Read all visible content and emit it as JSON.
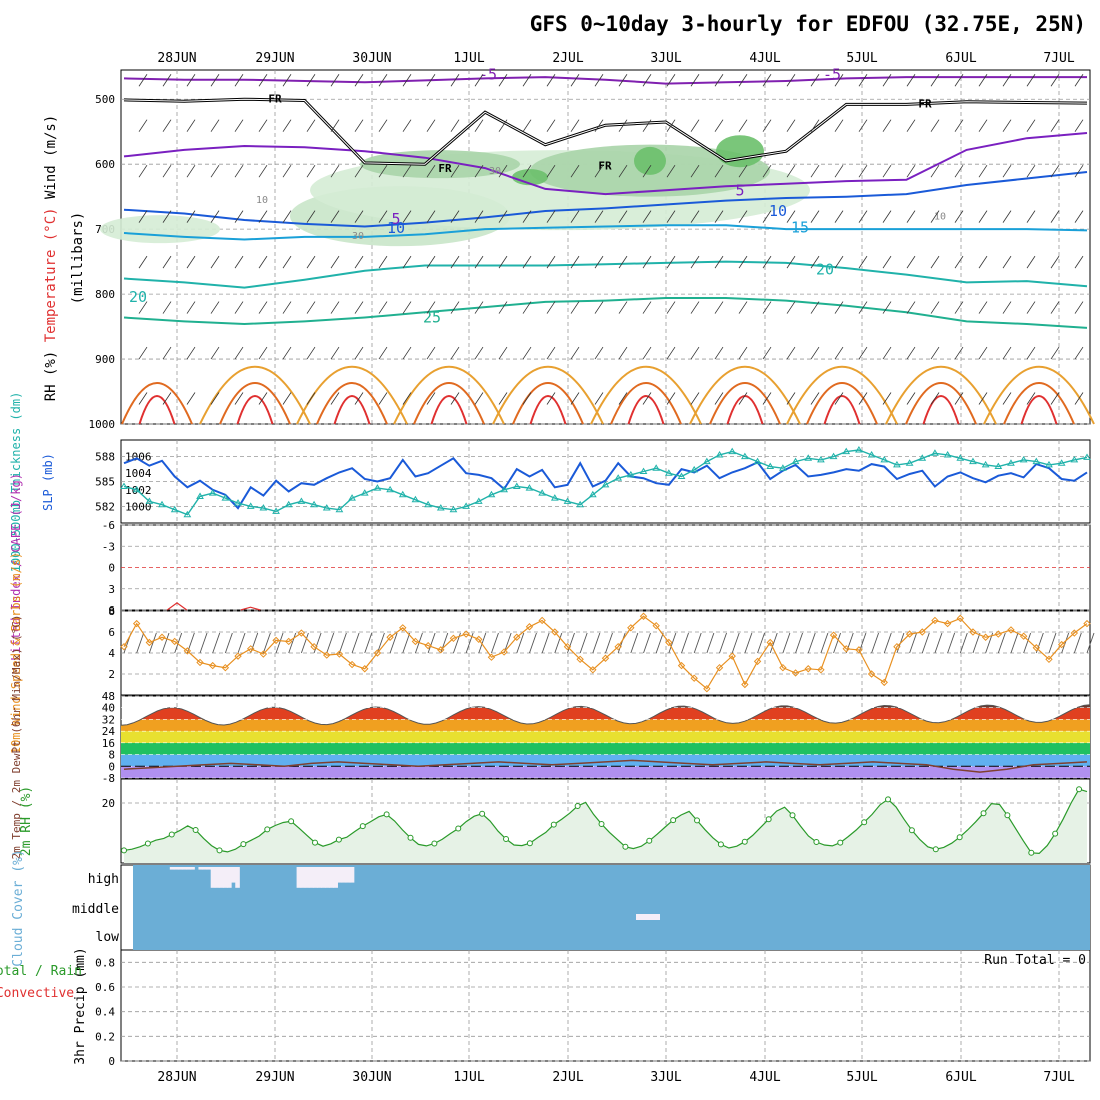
{
  "title": "GFS 0~10day 3-hourly for EDFOU (32.75E, 25N)",
  "dates": [
    "28JUN",
    "29JUN",
    "30JUN",
    "1JUL",
    "2JUL",
    "3JUL",
    "4JUL",
    "5JUL",
    "6JUL",
    "7JUL"
  ],
  "colors": {
    "rh": "#4caf50",
    "cyan": "#20b2aa",
    "blue": "#1030c8",
    "orange": "#e89020",
    "red": "#e03030",
    "cloud": "#6baed6",
    "purple": "#8020b0",
    "green": "#2a9a2a"
  },
  "chart_data": [
    {
      "type": "line",
      "panel": "upper-air",
      "ylabel": "(millibars)",
      "side_labels": [
        "Wind (m/s)",
        "Temperature (°C)",
        "RH (%)"
      ],
      "y_ticks": [
        "500",
        "600",
        "700",
        "800",
        "900",
        "1000"
      ],
      "isotherm_labels": [
        "-5",
        "-5",
        "5",
        "5",
        "10",
        "10",
        "15",
        "20",
        "20",
        "25"
      ],
      "freezing_labels": [
        "FR",
        "FR",
        "FR",
        "FR"
      ],
      "rh_labels": [
        "10",
        "30",
        "30",
        "10"
      ],
      "isotherms": [
        {
          "temp": -5,
          "p": [
            468,
            470,
            470,
            472,
            474,
            471,
            468,
            466,
            470,
            476,
            474,
            472,
            468,
            466,
            466,
            466,
            466
          ]
        },
        {
          "temp": 5,
          "p": [
            588,
            578,
            572,
            574,
            580,
            590,
            606,
            638,
            646,
            640,
            634,
            630,
            626,
            624,
            578,
            560,
            552
          ]
        },
        {
          "temp": 10,
          "p": [
            670,
            676,
            686,
            692,
            696,
            690,
            682,
            672,
            668,
            662,
            656,
            652,
            650,
            646,
            632,
            622,
            612
          ]
        },
        {
          "temp": 15,
          "p": [
            706,
            712,
            716,
            712,
            712,
            708,
            700,
            698,
            696,
            694,
            694,
            700,
            700,
            700,
            700,
            700,
            702
          ]
        },
        {
          "temp": 20,
          "p": [
            776,
            782,
            790,
            778,
            764,
            756,
            756,
            756,
            754,
            752,
            750,
            752,
            760,
            770,
            782,
            780,
            788
          ]
        },
        {
          "temp": 25,
          "p": [
            836,
            842,
            846,
            842,
            836,
            828,
            820,
            812,
            810,
            806,
            806,
            810,
            818,
            828,
            842,
            846,
            852
          ]
        }
      ],
      "freezing_level": [
        501,
        503,
        500,
        502,
        598,
        600,
        520,
        570,
        540,
        535,
        595,
        580,
        508,
        508,
        504,
        505,
        506
      ]
    },
    {
      "type": "line",
      "panel": "thickness-slp",
      "ylabel_left": "1000-500mb Thickness (dm)",
      "ylabel_right": "SLP (mb)",
      "left_ticks": [
        "588",
        "585",
        "582"
      ],
      "right_ticks": [
        "1006",
        "1004",
        "1002",
        "1000"
      ],
      "ylim_thickness": [
        580,
        590
      ],
      "ylim_slp": [
        998,
        1008
      ],
      "thickness": [
        587.2,
        587.8,
        586.9,
        587.5,
        585.6,
        584.3,
        585.1,
        584.0,
        583.4,
        581.8,
        584.3,
        583.3,
        585.1,
        583.8,
        584.8,
        584.6,
        585.4,
        586.1,
        586.6,
        585.3,
        585.0,
        585.4,
        587.6,
        585.6,
        586.0,
        586.9,
        587.8,
        586.0,
        585.8,
        585.4,
        584.1,
        586.5,
        585.6,
        586.4,
        584.3,
        584.6,
        587.2,
        584.4,
        585.1,
        587.2,
        585.6,
        585.4,
        584.8,
        584.6,
        586.5,
        586.1,
        586.9,
        585.4,
        586.1,
        586.6,
        587.3,
        585.3,
        586.3,
        587.0,
        585.6,
        585.8,
        586.1,
        586.5,
        586.3,
        587.1,
        586.8,
        585.3,
        585.9,
        586.3,
        584.4,
        585.6,
        586.1,
        585.4,
        584.9,
        585.7,
        586.0,
        585.5,
        587.1,
        586.6,
        585.3,
        585.1,
        586.1
      ],
      "slp": [
        1002.4,
        1002.0,
        1000.6,
        1000.2,
        999.6,
        999.0,
        1001.2,
        1001.6,
        1001.0,
        1000.4,
        1000.0,
        999.8,
        999.4,
        1000.2,
        1000.6,
        1000.2,
        999.8,
        999.6,
        1001.0,
        1001.6,
        1002.2,
        1002.0,
        1001.4,
        1000.8,
        1000.2,
        999.8,
        999.6,
        1000.0,
        1000.6,
        1001.4,
        1002.0,
        1002.4,
        1002.2,
        1001.6,
        1001.0,
        1000.6,
        1000.2,
        1001.4,
        1002.6,
        1003.4,
        1003.8,
        1004.2,
        1004.6,
        1004.0,
        1003.6,
        1004.4,
        1005.4,
        1006.2,
        1006.6,
        1006.0,
        1005.4,
        1004.8,
        1004.6,
        1005.4,
        1005.8,
        1005.6,
        1006.0,
        1006.6,
        1006.8,
        1006.2,
        1005.6,
        1005.0,
        1005.2,
        1005.8,
        1006.4,
        1006.2,
        1005.8,
        1005.4,
        1005.0,
        1004.8,
        1005.2,
        1005.6,
        1005.4,
        1005.0,
        1005.2,
        1005.6,
        1005.9
      ]
    },
    {
      "type": "line",
      "panel": "stability",
      "ylabel": "Lifted Index / CAPE (J/kg)",
      "y_ticks": [
        "-6",
        "-3",
        "0",
        "3",
        "6"
      ],
      "ylim": [
        -6,
        6
      ],
      "lifted_index_segments": [
        {
          "x": [
            27.9,
            28.0,
            28.1
          ],
          "y": [
            6.0,
            5.0,
            6.0
          ]
        },
        {
          "x": [
            28.65,
            28.75,
            28.85
          ],
          "y": [
            6.0,
            5.6,
            6.0
          ]
        }
      ]
    },
    {
      "type": "line",
      "panel": "wind10m",
      "ylabel": "10m Wind Speed & Barbs (m/s)",
      "y_ticks": [
        "8",
        "6",
        "4",
        "2"
      ],
      "ylim": [
        0,
        8
      ],
      "speed": [
        4.6,
        6.8,
        5.0,
        5.5,
        5.1,
        4.2,
        3.1,
        2.8,
        2.6,
        3.7,
        4.4,
        3.9,
        5.2,
        5.1,
        5.9,
        4.6,
        3.8,
        3.9,
        2.9,
        2.5,
        4.0,
        5.5,
        6.4,
        5.1,
        4.7,
        4.3,
        5.4,
        5.8,
        5.3,
        3.6,
        4.1,
        5.5,
        6.5,
        7.1,
        6.0,
        4.6,
        3.4,
        2.4,
        3.5,
        4.6,
        6.4,
        7.5,
        6.6,
        5.0,
        2.8,
        1.6,
        0.6,
        2.6,
        3.7,
        1.0,
        3.2,
        5.0,
        2.6,
        2.1,
        2.5,
        2.4,
        5.7,
        4.4,
        4.3,
        2.0,
        1.2,
        4.6,
        5.8,
        6.0,
        7.1,
        6.8,
        7.3,
        6.0,
        5.5,
        5.8,
        6.2,
        5.6,
        4.5,
        3.4,
        4.8,
        5.9,
        6.8
      ]
    },
    {
      "type": "area",
      "panel": "temperature",
      "ylabel": "2m Temp / 2m DewPt (6hr Min/Max) (°C)",
      "y_ticks": [
        "48",
        "40",
        "32",
        "24",
        "16",
        "8",
        "0",
        "-8"
      ],
      "ylim": [
        -8,
        48
      ],
      "temp_max": [
        36,
        38,
        41,
        42,
        41
      ],
      "temp_min": [
        28,
        30,
        31,
        32,
        32
      ],
      "dewpoint": [
        -2,
        -1,
        0,
        1,
        2,
        1,
        0,
        2,
        3,
        2,
        1,
        0,
        1,
        2,
        3,
        2,
        1,
        2,
        3,
        4,
        3,
        2,
        1,
        2,
        3,
        2,
        1,
        2,
        3,
        2,
        1,
        -2,
        -4,
        -2,
        1,
        2,
        3
      ]
    },
    {
      "type": "line",
      "panel": "rh2m",
      "ylabel": "2m RH (%)",
      "y_ticks": [
        "20"
      ],
      "ylim": [
        0,
        28
      ],
      "rh": [
        4.2,
        4.6,
        5.4,
        6.5,
        7.6,
        8.2,
        9.5,
        10.8,
        12.4,
        11.0,
        8.2,
        5.8,
        4.2,
        3.7,
        4.6,
        6.3,
        7.6,
        9.0,
        11.2,
        12.5,
        13.5,
        13.9,
        11.6,
        9.2,
        6.8,
        5.6,
        6.4,
        7.8,
        8.6,
        10.5,
        12.3,
        13.8,
        15.4,
        16.2,
        14.0,
        11.0,
        8.4,
        6.2,
        5.7,
        6.5,
        7.9,
        9.8,
        11.5,
        13.8,
        15.6,
        16.4,
        14.0,
        10.6,
        8.0,
        6.0,
        5.8,
        6.6,
        8.5,
        10.2,
        12.8,
        14.6,
        16.6,
        19.0,
        20.2,
        16.2,
        13.0,
        10.2,
        7.8,
        5.4,
        4.8,
        5.6,
        7.4,
        9.6,
        12.0,
        14.3,
        16.0,
        17.2,
        14.2,
        11.1,
        8.4,
        6.2,
        5.0,
        5.6,
        7.1,
        9.2,
        11.9,
        14.6,
        17.3,
        18.6,
        15.9,
        12.3,
        9.0,
        7.0,
        6.0,
        5.7,
        6.8,
        8.8,
        11.0,
        13.6,
        16.2,
        19.4,
        21.2,
        18.7,
        14.6,
        10.9,
        7.8,
        5.4,
        4.6,
        5.2,
        6.6,
        8.6,
        11.0,
        13.7,
        16.6,
        19.8,
        19.5,
        15.9,
        11.6,
        7.4,
        3.4,
        3.2,
        5.8,
        9.8,
        14.6,
        20.0,
        24.6,
        23.8
      ]
    },
    {
      "type": "area",
      "panel": "cloud",
      "ylabel": "Cloud Cover (%)",
      "levels": [
        "high",
        "middle",
        "low"
      ],
      "high": [
        0,
        0,
        0,
        0,
        0,
        0,
        0,
        0,
        0,
        10,
        10,
        10,
        10,
        10,
        10,
        0,
        10,
        10,
        10,
        80,
        80,
        80,
        80,
        80,
        60,
        80,
        0,
        0,
        0,
        0,
        0,
        0,
        0,
        0,
        0,
        0,
        0,
        0,
        0,
        0,
        80,
        80,
        80,
        80,
        80,
        80,
        80,
        80,
        80,
        80,
        60,
        60,
        60,
        60,
        0,
        0,
        0,
        0,
        0,
        0,
        0,
        0,
        0,
        0,
        0,
        0,
        0,
        0,
        0,
        0,
        0,
        0,
        0,
        0,
        0,
        0,
        0,
        0,
        0,
        0,
        0,
        0,
        0,
        0,
        0,
        0,
        0,
        0,
        0,
        0,
        0,
        0,
        0,
        0,
        0,
        0,
        0,
        0,
        0,
        0,
        0,
        0,
        0,
        0,
        0,
        0,
        0,
        0,
        0,
        0,
        0,
        0,
        0,
        0,
        0,
        0,
        0,
        0,
        0,
        0,
        0,
        0,
        0,
        0,
        0,
        0,
        0,
        0,
        0,
        0,
        0,
        0,
        0,
        0,
        0,
        0,
        0,
        0,
        0,
        0,
        0,
        0,
        0,
        0,
        0,
        0,
        0,
        0,
        0,
        0,
        0,
        0,
        0,
        0,
        0,
        0,
        0,
        0,
        0,
        0,
        0,
        0,
        0,
        0,
        0,
        0,
        0,
        0,
        0,
        0,
        0,
        0,
        0,
        0,
        0,
        0,
        0,
        0,
        0,
        0,
        0,
        0,
        0,
        0,
        0,
        0,
        0,
        0,
        0,
        0,
        0,
        0,
        0,
        0,
        0,
        0,
        0,
        0,
        0,
        0,
        0,
        0,
        0,
        0,
        0,
        0,
        0,
        0,
        0,
        0,
        0,
        0,
        0,
        0,
        0,
        0,
        0,
        0,
        0,
        0,
        0,
        0,
        0,
        0,
        0,
        0,
        0,
        0,
        0,
        0
      ],
      "middle": [
        0,
        0,
        0,
        0,
        0,
        0,
        0,
        0,
        0,
        0,
        0,
        0,
        0,
        0,
        0,
        0,
        0,
        0,
        0,
        0,
        0,
        0,
        0,
        0,
        0,
        0,
        0,
        0,
        0,
        0,
        0,
        0,
        0,
        0,
        0,
        0,
        0,
        0,
        0,
        0,
        0,
        0,
        0,
        0,
        0,
        0,
        0,
        0,
        0,
        0,
        0,
        0,
        0,
        0,
        0,
        0,
        0,
        0,
        0,
        0,
        0,
        0,
        0,
        0,
        0,
        0,
        0,
        0,
        0,
        0,
        0,
        0,
        0,
        0,
        0,
        0,
        0,
        0,
        0,
        0,
        0,
        0,
        0,
        0,
        0,
        0,
        0,
        0,
        0,
        0,
        0,
        0,
        0,
        0,
        0,
        0,
        0,
        0,
        0,
        0,
        0,
        0,
        0,
        0,
        0,
        0,
        0,
        0,
        0,
        0,
        0,
        0,
        0,
        0,
        0,
        0,
        0,
        0,
        0,
        0,
        0,
        0,
        0,
        0,
        0,
        0,
        0,
        0,
        0,
        0,
        0,
        0,
        0,
        0,
        0,
        0,
        0,
        0,
        0,
        0,
        0,
        0,
        0,
        0,
        0,
        0,
        0,
        0,
        0,
        0,
        0,
        0,
        0,
        0,
        0,
        0,
        0,
        0,
        0,
        0,
        0,
        0,
        0,
        0,
        0,
        0,
        0,
        0,
        0,
        0,
        0,
        0,
        0,
        0,
        0,
        0,
        0,
        0,
        0,
        0,
        0,
        0,
        0,
        0,
        0,
        0,
        0,
        0,
        0,
        0,
        0,
        0,
        0,
        0,
        0,
        0,
        0,
        0,
        0,
        0,
        0,
        0,
        0,
        0,
        0,
        0,
        0,
        0,
        0,
        0,
        0,
        0,
        0,
        0,
        0,
        0,
        0,
        0,
        0,
        0,
        0,
        0,
        0,
        0,
        0,
        0,
        0,
        0,
        0,
        0,
        0,
        0,
        0,
        0,
        0,
        0,
        0,
        0,
        0,
        0,
        0
      ],
      "low": [
        0,
        0,
        0,
        0,
        0,
        0,
        0,
        0,
        0,
        0,
        0,
        0,
        0,
        0,
        0,
        0,
        0,
        0,
        0,
        0,
        0,
        0,
        0,
        0,
        0,
        0,
        0,
        0,
        0,
        0,
        0,
        0,
        0,
        0,
        0,
        0,
        0,
        0,
        0,
        0,
        0,
        0,
        0,
        0,
        0,
        0,
        0,
        0,
        0,
        0,
        0,
        0,
        0,
        0,
        0,
        0,
        0,
        0,
        0,
        0,
        0,
        0,
        0,
        0,
        0,
        0,
        0,
        0,
        0,
        0,
        0,
        0,
        0,
        0,
        0,
        0,
        0,
        0,
        0,
        0,
        0,
        0,
        0,
        0,
        0,
        0,
        0,
        0,
        0,
        0,
        0,
        0,
        0,
        0,
        0,
        0,
        0,
        0,
        0,
        0,
        0,
        0,
        0,
        0,
        0,
        0,
        0,
        0,
        0,
        0,
        0,
        0,
        0,
        0,
        0,
        0,
        0,
        0,
        0,
        0,
        0,
        0,
        0,
        0,
        0,
        0,
        0,
        0,
        0,
        0,
        0,
        0,
        0,
        0,
        0,
        0,
        0,
        0,
        0,
        0,
        0,
        0,
        0,
        0,
        0,
        0,
        0,
        0,
        0,
        0,
        0,
        0,
        0,
        0,
        0,
        0,
        0,
        0,
        0,
        0,
        0,
        0,
        0,
        0,
        0,
        0,
        0,
        0,
        0,
        0,
        0,
        0,
        0,
        0,
        0,
        0,
        0,
        0,
        0,
        0,
        0,
        0,
        0,
        0,
        0,
        0,
        0,
        0,
        0,
        0,
        0,
        0,
        0,
        0,
        0,
        0,
        0,
        0,
        0,
        0,
        0,
        0,
        0,
        0,
        0,
        0,
        0,
        0,
        0,
        0,
        0,
        0,
        0,
        0,
        0,
        0,
        0,
        0,
        0,
        0,
        0,
        0,
        0,
        0,
        0,
        0,
        0,
        0,
        0,
        0,
        0,
        0,
        0,
        0,
        0,
        0,
        0,
        0,
        0,
        0,
        0,
        0
      ]
    },
    {
      "type": "bar",
      "panel": "precip",
      "ylabel": "3hr Precip (mm)",
      "side_label_1": "Total / Rain",
      "side_label_2": "Convective",
      "run_total": "Run Total = 0",
      "y_ticks": [
        "0.8",
        "0.6",
        "0.4",
        "0.2",
        "0"
      ],
      "ylim": [
        0,
        0.9
      ],
      "values": []
    }
  ]
}
